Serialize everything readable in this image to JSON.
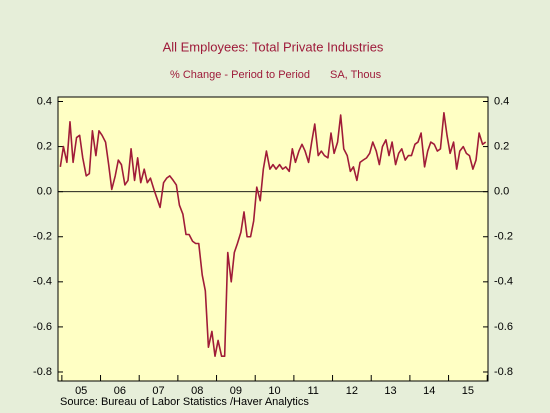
{
  "chart_data": {
    "type": "line",
    "title": "All Employees: Total Private Industries",
    "subtitle": "% Change - Period to Period",
    "units": "SA, Thous",
    "source": "Source:  Bureau of Labor Statistics /Haver Analytics",
    "color": "#a01c38",
    "xlim": [
      2004.9,
      2016.02
    ],
    "ylim": [
      -0.84,
      0.42
    ],
    "yticks": [
      0.4,
      0.2,
      {
        "value": 0,
        "label": "0.0"
      },
      -0.2,
      -0.4,
      -0.6,
      -0.8
    ],
    "xticks": [
      {
        "value": 2005.5,
        "label": "05"
      },
      {
        "value": 2006.5,
        "label": "06"
      },
      {
        "value": 2007.5,
        "label": "07"
      },
      {
        "value": 2008.5,
        "label": "08"
      },
      {
        "value": 2009.5,
        "label": "09"
      },
      {
        "value": 2010.5,
        "label": "10"
      },
      {
        "value": 2011.5,
        "label": "11"
      },
      {
        "value": 2012.5,
        "label": "12"
      },
      {
        "value": 2013.5,
        "label": "13"
      },
      {
        "value": 2014.5,
        "label": "14"
      },
      {
        "value": 2015.5,
        "label": "15"
      }
    ],
    "xminor": [
      2005,
      2006,
      2007,
      2008,
      2009,
      2010,
      2011,
      2012,
      2013,
      2014,
      2015,
      2016
    ],
    "x": [
      2004.96,
      2005.04,
      2005.13,
      2005.21,
      2005.29,
      2005.38,
      2005.46,
      2005.54,
      2005.63,
      2005.71,
      2005.79,
      2005.88,
      2005.96,
      2006.04,
      2006.13,
      2006.21,
      2006.29,
      2006.38,
      2006.46,
      2006.54,
      2006.63,
      2006.71,
      2006.79,
      2006.88,
      2006.96,
      2007.04,
      2007.13,
      2007.21,
      2007.29,
      2007.38,
      2007.46,
      2007.54,
      2007.63,
      2007.71,
      2007.79,
      2007.88,
      2007.96,
      2008.04,
      2008.13,
      2008.21,
      2008.29,
      2008.38,
      2008.46,
      2008.54,
      2008.63,
      2008.71,
      2008.79,
      2008.88,
      2008.96,
      2009.04,
      2009.13,
      2009.21,
      2009.29,
      2009.38,
      2009.46,
      2009.54,
      2009.63,
      2009.71,
      2009.79,
      2009.88,
      2009.96,
      2010.04,
      2010.13,
      2010.21,
      2010.29,
      2010.38,
      2010.46,
      2010.54,
      2010.63,
      2010.71,
      2010.79,
      2010.88,
      2010.96,
      2011.04,
      2011.13,
      2011.21,
      2011.29,
      2011.38,
      2011.46,
      2011.54,
      2011.63,
      2011.71,
      2011.79,
      2011.88,
      2011.96,
      2012.04,
      2012.13,
      2012.21,
      2012.29,
      2012.38,
      2012.46,
      2012.54,
      2012.63,
      2012.71,
      2012.79,
      2012.88,
      2012.96,
      2013.04,
      2013.13,
      2013.21,
      2013.29,
      2013.38,
      2013.46,
      2013.54,
      2013.63,
      2013.71,
      2013.79,
      2013.88,
      2013.96,
      2014.04,
      2014.13,
      2014.21,
      2014.29,
      2014.38,
      2014.46,
      2014.54,
      2014.63,
      2014.71,
      2014.79,
      2014.88,
      2014.96,
      2015.04,
      2015.13,
      2015.21,
      2015.29,
      2015.38,
      2015.46,
      2015.54,
      2015.63,
      2015.71,
      2015.79,
      2015.88,
      2015.96
    ],
    "values": [
      0.11,
      0.2,
      0.13,
      0.31,
      0.13,
      0.24,
      0.25,
      0.15,
      0.07,
      0.08,
      0.27,
      0.16,
      0.27,
      0.25,
      0.22,
      0.12,
      0.01,
      0.07,
      0.14,
      0.12,
      0.03,
      0.05,
      0.19,
      0.05,
      0.15,
      0.04,
      0.1,
      0.04,
      0.06,
      0.01,
      -0.03,
      -0.07,
      0.04,
      0.06,
      0.07,
      0.05,
      0.03,
      -0.06,
      -0.1,
      -0.19,
      -0.19,
      -0.22,
      -0.23,
      -0.23,
      -0.37,
      -0.44,
      -0.69,
      -0.62,
      -0.73,
      -0.66,
      -0.73,
      -0.73,
      -0.27,
      -0.4,
      -0.27,
      -0.23,
      -0.18,
      -0.09,
      -0.2,
      -0.2,
      -0.13,
      0.02,
      -0.04,
      0.1,
      0.18,
      0.1,
      0.12,
      0.1,
      0.12,
      0.1,
      0.11,
      0.09,
      0.19,
      0.13,
      0.18,
      0.21,
      0.18,
      0.13,
      0.22,
      0.3,
      0.16,
      0.18,
      0.16,
      0.15,
      0.26,
      0.17,
      0.22,
      0.34,
      0.19,
      0.16,
      0.09,
      0.11,
      0.05,
      0.13,
      0.14,
      0.15,
      0.17,
      0.22,
      0.18,
      0.12,
      0.2,
      0.23,
      0.16,
      0.22,
      0.12,
      0.17,
      0.19,
      0.14,
      0.16,
      0.16,
      0.21,
      0.22,
      0.26,
      0.11,
      0.18,
      0.22,
      0.21,
      0.18,
      0.19,
      0.35,
      0.25,
      0.17,
      0.22,
      0.1,
      0.18,
      0.2,
      0.17,
      0.16,
      0.1,
      0.14,
      0.26,
      0.21,
      0.22
    ]
  }
}
